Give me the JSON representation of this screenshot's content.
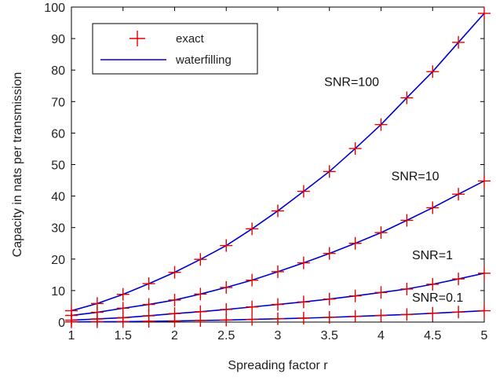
{
  "chart_data": {
    "type": "line",
    "title": "",
    "xlabel": "Spreading factor r",
    "ylabel": "Capacity in nats per transmission",
    "xlim": [
      1,
      5
    ],
    "ylim": [
      0,
      100
    ],
    "xticks": [
      1,
      1.5,
      2,
      2.5,
      3,
      3.5,
      4,
      4.5,
      5
    ],
    "yticks": [
      0,
      10,
      20,
      30,
      40,
      50,
      60,
      70,
      80,
      90,
      100
    ],
    "grid": false,
    "legend_position": "top-left",
    "legend": [
      {
        "label": "exact",
        "marker": "plus",
        "color": "#e00000"
      },
      {
        "label": "waterfilling",
        "marker": "line",
        "color": "#0000cc"
      }
    ],
    "x": [
      1,
      1.25,
      1.5,
      1.75,
      2,
      2.25,
      2.5,
      2.75,
      3,
      3.25,
      3.5,
      3.75,
      4,
      4.25,
      4.5,
      4.75,
      5
    ],
    "series": [
      {
        "name": "SNR=100",
        "values": [
          3.6,
          5.9,
          8.8,
          12.2,
          15.8,
          19.9,
          24.3,
          29.6,
          35.3,
          41.5,
          47.8,
          55.1,
          62.7,
          71.2,
          79.5,
          88.8,
          98.0
        ]
      },
      {
        "name": "SNR=10",
        "values": [
          2.1,
          3.1,
          4.4,
          5.6,
          7.0,
          8.9,
          11.0,
          13.3,
          16.0,
          18.8,
          21.8,
          25.0,
          28.4,
          32.3,
          36.3,
          40.6,
          44.8
        ]
      },
      {
        "name": "SNR=1",
        "values": [
          0.6,
          1.0,
          1.4,
          2.0,
          2.7,
          3.3,
          4.0,
          4.8,
          5.6,
          6.4,
          7.3,
          8.3,
          9.4,
          10.5,
          12.0,
          13.7,
          15.5
        ]
      },
      {
        "name": "SNR=0.1",
        "values": [
          0.06,
          0.1,
          0.15,
          0.25,
          0.35,
          0.5,
          0.65,
          0.85,
          1.05,
          1.25,
          1.5,
          1.8,
          2.1,
          2.4,
          2.8,
          3.2,
          3.6
        ]
      }
    ],
    "annotations": [
      {
        "text": "SNR=100",
        "at_x": 3.45,
        "at_y": 75
      },
      {
        "text": "SNR=10",
        "at_x": 4.1,
        "at_y": 45
      },
      {
        "text": "SNR=1",
        "at_x": 4.3,
        "at_y": 20
      },
      {
        "text": "SNR=0.1",
        "at_x": 4.3,
        "at_y": 6.5
      }
    ],
    "colors": {
      "exact": "#e00000",
      "waterfilling": "#0000cc",
      "axis": "#000000"
    }
  }
}
